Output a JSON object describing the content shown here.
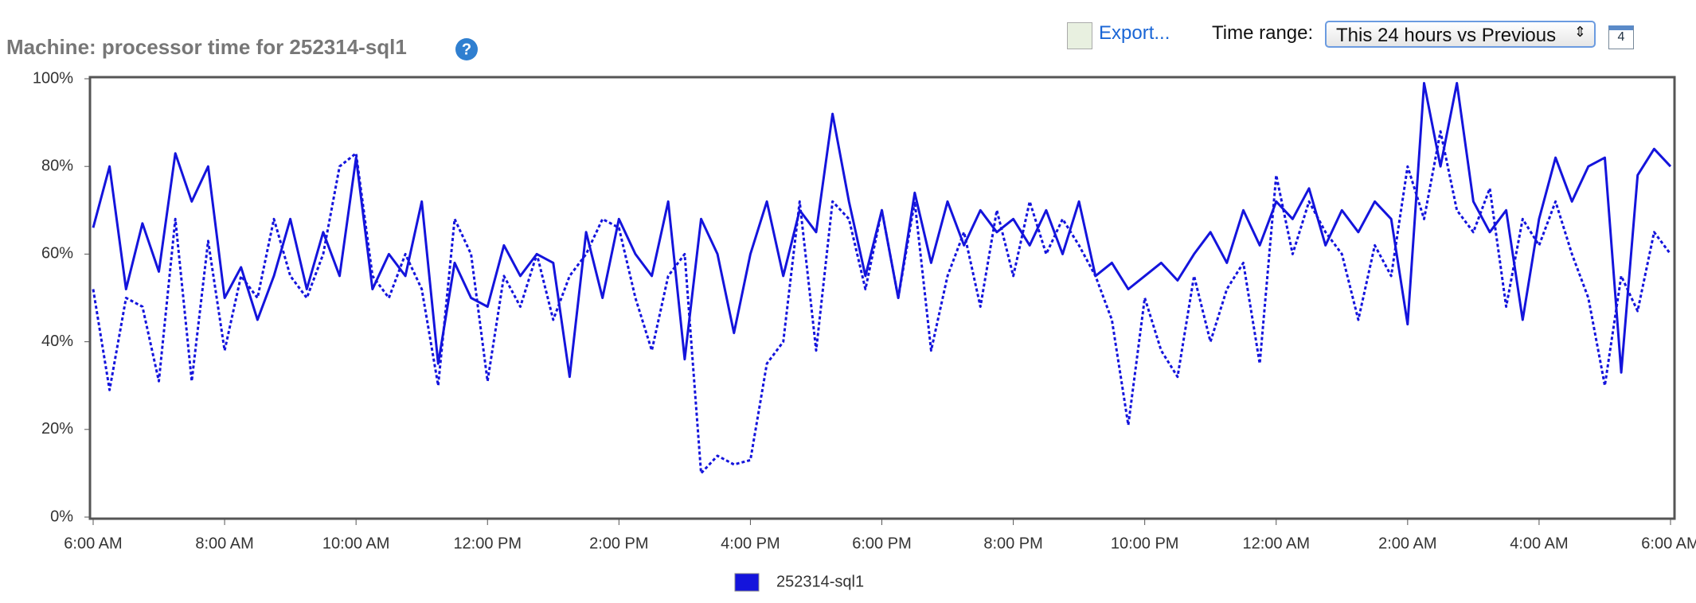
{
  "toolbar": {
    "export": "Export...",
    "time_range_label": "Time range:",
    "time_range_value": "This 24 hours vs Previous",
    "calendar_day": "4"
  },
  "chart_data": {
    "type": "line",
    "title": "Machine: processor time for 252314-sql1",
    "x": [
      0,
      0.25,
      0.5,
      0.75,
      1,
      1.25,
      1.5,
      1.75,
      2,
      2.25,
      2.5,
      2.75,
      3,
      3.25,
      3.5,
      3.75,
      4,
      4.25,
      4.5,
      4.75,
      5,
      5.25,
      5.5,
      5.75,
      6,
      6.25,
      6.5,
      6.75,
      7,
      7.25,
      7.5,
      7.75,
      8,
      8.25,
      8.5,
      8.75,
      9,
      9.25,
      9.5,
      9.75,
      10,
      10.25,
      10.5,
      10.75,
      11,
      11.25,
      11.5,
      11.75,
      12,
      12.25,
      12.5,
      12.75,
      13,
      13.25,
      13.5,
      13.75,
      14,
      14.25,
      14.5,
      14.75,
      15,
      15.25,
      15.5,
      15.75,
      16,
      16.25,
      16.5,
      16.75,
      17,
      17.25,
      17.5,
      17.75,
      18,
      18.25,
      18.5,
      18.75,
      19,
      19.25,
      19.5,
      19.75,
      20,
      20.25,
      20.5,
      20.75,
      21,
      21.25,
      21.5,
      21.75,
      22,
      22.25,
      22.5,
      22.75,
      23,
      23.25,
      23.5,
      23.75,
      24
    ],
    "series": [
      {
        "name": "252314-sql1",
        "color": "#1414dc",
        "line_style": "solid",
        "values": [
          66,
          80,
          52,
          67,
          56,
          83,
          72,
          80,
          50,
          57,
          45,
          55,
          68,
          52,
          65,
          55,
          82,
          52,
          60,
          55,
          72,
          35,
          58,
          50,
          48,
          62,
          55,
          60,
          58,
          32,
          65,
          50,
          68,
          60,
          55,
          72,
          36,
          68,
          60,
          42,
          60,
          72,
          55,
          70,
          65,
          92,
          72,
          55,
          70,
          50,
          74,
          58,
          72,
          62,
          70,
          65,
          68,
          62,
          70,
          60,
          72,
          55,
          58,
          52,
          55,
          58,
          54,
          60,
          65,
          58,
          70,
          62,
          72,
          68,
          75,
          62,
          70,
          65,
          72,
          68,
          44,
          99,
          80,
          99,
          72,
          65,
          70,
          45,
          68,
          82,
          72,
          80,
          82,
          33,
          78,
          84,
          80
        ]
      },
      {
        "color": "#1414dc",
        "line_style": "dotted",
        "values": [
          52,
          29,
          50,
          48,
          31,
          68,
          31,
          63,
          38,
          55,
          50,
          68,
          55,
          50,
          60,
          80,
          83,
          55,
          50,
          60,
          52,
          30,
          68,
          60,
          31,
          55,
          48,
          60,
          45,
          55,
          60,
          68,
          66,
          50,
          38,
          55,
          60,
          10,
          14,
          12,
          13,
          35,
          40,
          72,
          38,
          72,
          68,
          52,
          70,
          50,
          72,
          38,
          55,
          65,
          48,
          70,
          55,
          72,
          60,
          68,
          62,
          55,
          45,
          21,
          50,
          38,
          32,
          55,
          40,
          52,
          58,
          35,
          78,
          60,
          72,
          65,
          60,
          45,
          62,
          55,
          80,
          68,
          88,
          70,
          65,
          75,
          48,
          68,
          62,
          72,
          60,
          50,
          30,
          55,
          47,
          65,
          60
        ]
      }
    ],
    "xlim": [
      0,
      24
    ],
    "xticks": [
      {
        "value": 0,
        "label": "6:00 AM"
      },
      {
        "value": 2,
        "label": "8:00 AM"
      },
      {
        "value": 4,
        "label": "10:00 AM"
      },
      {
        "value": 6,
        "label": "12:00 PM"
      },
      {
        "value": 8,
        "label": "2:00 PM"
      },
      {
        "value": 10,
        "label": "4:00 PM"
      },
      {
        "value": 12,
        "label": "6:00 PM"
      },
      {
        "value": 14,
        "label": "8:00 PM"
      },
      {
        "value": 16,
        "label": "10:00 PM"
      },
      {
        "value": 18,
        "label": "12:00 AM"
      },
      {
        "value": 20,
        "label": "2:00 AM"
      },
      {
        "value": 22,
        "label": "4:00 AM"
      },
      {
        "value": 24,
        "label": "6:00 AM"
      }
    ],
    "ylim": [
      0,
      100
    ],
    "yticks": [
      {
        "value": 0,
        "label": "0%"
      },
      {
        "value": 20,
        "label": "20%"
      },
      {
        "value": 40,
        "label": "40%"
      },
      {
        "value": 60,
        "label": "60%"
      },
      {
        "value": 80,
        "label": "80%"
      },
      {
        "value": 100,
        "label": "100%"
      }
    ],
    "legend": "bottom"
  }
}
